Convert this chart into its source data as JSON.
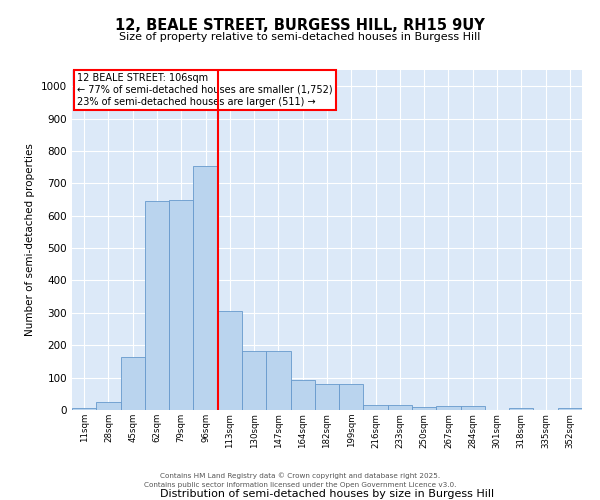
{
  "title": "12, BEALE STREET, BURGESS HILL, RH15 9UY",
  "subtitle": "Size of property relative to semi-detached houses in Burgess Hill",
  "xlabel": "Distribution of semi-detached houses by size in Burgess Hill",
  "ylabel": "Number of semi-detached properties",
  "bin_labels": [
    "11sqm",
    "28sqm",
    "45sqm",
    "62sqm",
    "79sqm",
    "96sqm",
    "113sqm",
    "130sqm",
    "147sqm",
    "164sqm",
    "182sqm",
    "199sqm",
    "216sqm",
    "233sqm",
    "250sqm",
    "267sqm",
    "284sqm",
    "301sqm",
    "318sqm",
    "335sqm",
    "352sqm"
  ],
  "bar_values": [
    5,
    25,
    165,
    645,
    650,
    755,
    305,
    183,
    183,
    92,
    80,
    80,
    15,
    15,
    10,
    13,
    13,
    0,
    5,
    0,
    5
  ],
  "bar_color": "#bad4ee",
  "bar_edge_color": "#6699cc",
  "vline_x": 6.0,
  "vline_color": "red",
  "vline_label": "12 BEALE STREET: 106sqm",
  "annotation_lines": [
    "← 77% of semi-detached houses are smaller (1,752)",
    "23% of semi-detached houses are larger (511) →"
  ],
  "ylim": [
    0,
    1050
  ],
  "yticks": [
    0,
    100,
    200,
    300,
    400,
    500,
    600,
    700,
    800,
    900,
    1000
  ],
  "background_color": "#dce9f8",
  "footer_line1": "Contains HM Land Registry data © Crown copyright and database right 2025.",
  "footer_line2": "Contains public sector information licensed under the Open Government Licence v3.0."
}
